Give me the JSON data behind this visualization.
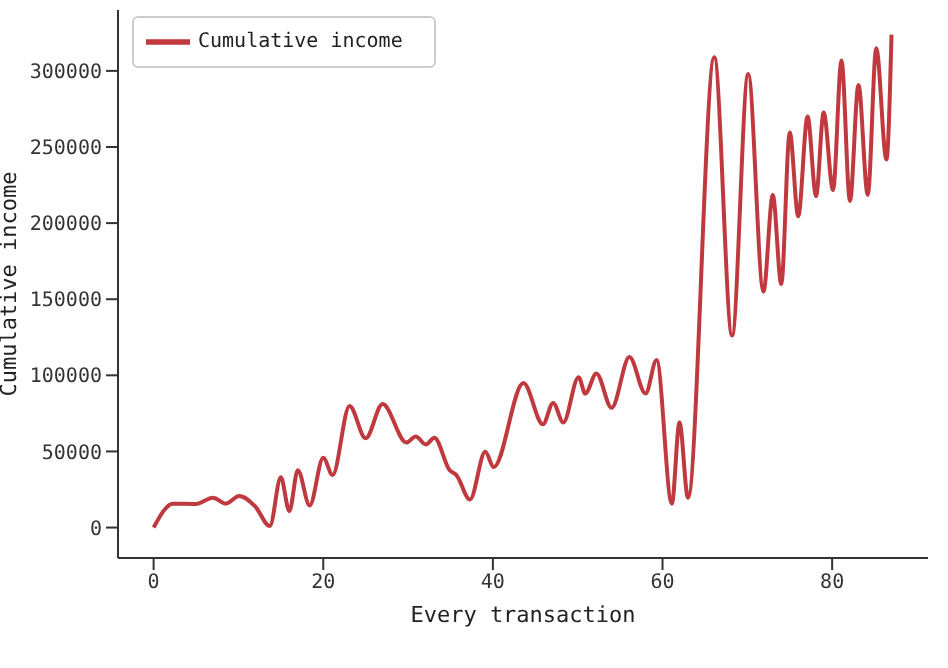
{
  "chart_data": {
    "type": "line",
    "xlabel": "Every transaction",
    "ylabel": "Cumulative income",
    "xlim": [
      -4.2,
      91.3
    ],
    "xticks": [
      0,
      20,
      40,
      60,
      80
    ],
    "ylim": [
      -20000,
      340000
    ],
    "yticks": [
      0,
      50000,
      100000,
      150000,
      200000,
      250000,
      300000
    ],
    "grid": false,
    "legend": "top left",
    "marker": "none",
    "line_style": "solid",
    "series": [
      {
        "name": "Cumulative income",
        "color": "#c0393f",
        "x": [
          0,
          2.3,
          5,
          7,
          8.5,
          10.1,
          12,
          13.7,
          15,
          16,
          17,
          18.4,
          20,
          21.1,
          23.1,
          25,
          27,
          29.8,
          30.9,
          32.1,
          33.1,
          34.9,
          35.7,
          37.3,
          39.1,
          40.1,
          43.6,
          45.9,
          47.1,
          48.3,
          50.1,
          50.9,
          52.2,
          54,
          56.1,
          58,
          59.3,
          61.1,
          62,
          63,
          66.1,
          68.2,
          70.1,
          71.9,
          73,
          74,
          75,
          76,
          77.1,
          78.1,
          79,
          80.1,
          81.1,
          82.1,
          83.1,
          84.2,
          85.2,
          86.4,
          87
        ],
        "values": [
          0,
          15700,
          15500,
          19600,
          15700,
          20800,
          13700,
          1000,
          33000,
          10800,
          37700,
          14500,
          45800,
          34500,
          79900,
          58700,
          81100,
          55800,
          59800,
          54600,
          59000,
          37700,
          34500,
          18400,
          49800,
          39700,
          95000,
          67800,
          81900,
          69000,
          98800,
          88000,
          101200,
          78700,
          112000,
          88000,
          110000,
          15700,
          69000,
          19600,
          309000,
          126100,
          298000,
          155000,
          218500,
          160000,
          259500,
          204500,
          270000,
          217700,
          272700,
          221700,
          306900,
          214500,
          290800,
          218500,
          314900,
          241800,
          323800
        ]
      }
    ]
  }
}
